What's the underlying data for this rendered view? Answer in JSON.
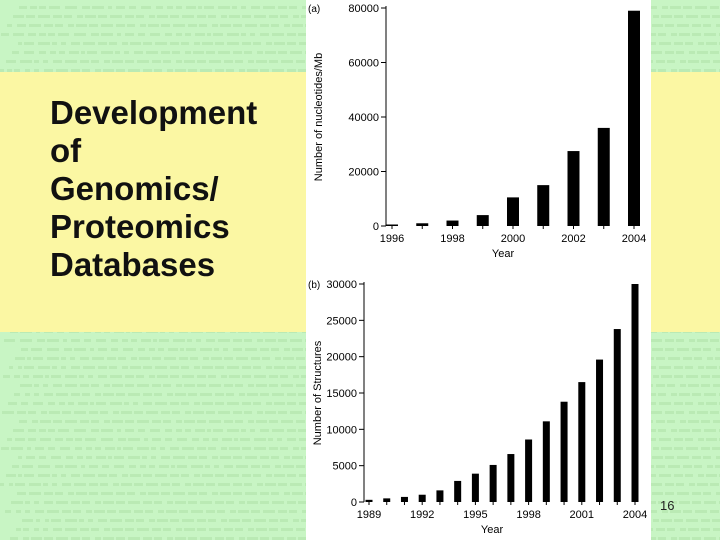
{
  "slide": {
    "title_lines": [
      "Development",
      "of",
      "Genomics/",
      "Proteomics",
      "Databases"
    ],
    "page_number": "16",
    "background_color": "#c8f5c4",
    "panel_color": "#fbf7a3"
  },
  "chart_data": [
    {
      "type": "bar",
      "panel_label": "(a)",
      "categories": [
        "1996",
        "1997",
        "1998",
        "1999",
        "2000",
        "2001",
        "2002",
        "2003",
        "2004"
      ],
      "series": [
        {
          "values": [
            500,
            1000,
            2000,
            4000,
            10500,
            15000,
            27500,
            36000,
            79000
          ]
        }
      ],
      "xticks": [
        "1996",
        "1998",
        "2000",
        "2002",
        "2004"
      ],
      "yticks": [
        "0",
        "20000",
        "40000",
        "60000",
        "80000"
      ],
      "xlabel": "Year",
      "ylabel": "Number of nucleotides/Mb",
      "ylim": [
        0,
        80000
      ],
      "grid": false
    },
    {
      "type": "bar",
      "panel_label": "(b)",
      "categories": [
        "1989",
        "1990",
        "1991",
        "1992",
        "1993",
        "1994",
        "1995",
        "1996",
        "1997",
        "1998",
        "1999",
        "2000",
        "2001",
        "2002",
        "2003",
        "2004"
      ],
      "series": [
        {
          "values": [
            300,
            500,
            700,
            1000,
            1600,
            2900,
            3900,
            5100,
            6600,
            8600,
            11100,
            13800,
            16500,
            19600,
            23800,
            30000
          ]
        }
      ],
      "xticks": [
        "1989",
        "1992",
        "1995",
        "1998",
        "2001",
        "2004"
      ],
      "yticks": [
        "0",
        "5000",
        "10000",
        "15000",
        "20000",
        "25000",
        "30000"
      ],
      "xlabel": "Year",
      "ylabel": "Number of Structures",
      "ylim": [
        0,
        30000
      ],
      "grid": false
    }
  ]
}
